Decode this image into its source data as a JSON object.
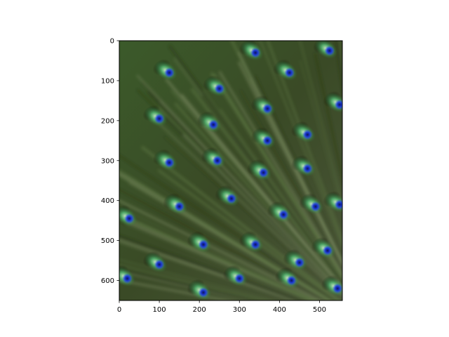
{
  "chart_data": {
    "type": "heatmap",
    "description_of_image": "",
    "x_ticks": [
      "0",
      "100",
      "200",
      "300",
      "400",
      "500"
    ],
    "y_ticks": [
      "0",
      "100",
      "200",
      "300",
      "400",
      "500",
      "600"
    ],
    "xlim": [
      0,
      557
    ],
    "ylim": [
      650,
      0
    ],
    "grid": false,
    "colors": {
      "background": "#2e3b1f",
      "feather_green": "#3aa55a",
      "feather_highlight": "#b7e8b0",
      "eye_blue": "#1e3ad6",
      "eye_core": "#0a1460",
      "shadow": "#141a0c",
      "axis": "#000000"
    },
    "eyespots": [
      {
        "x": 340,
        "y": 30
      },
      {
        "x": 525,
        "y": 25
      },
      {
        "x": 125,
        "y": 80
      },
      {
        "x": 425,
        "y": 80
      },
      {
        "x": 250,
        "y": 120
      },
      {
        "x": 550,
        "y": 160
      },
      {
        "x": 370,
        "y": 170
      },
      {
        "x": 100,
        "y": 195
      },
      {
        "x": 235,
        "y": 210
      },
      {
        "x": 470,
        "y": 235
      },
      {
        "x": 370,
        "y": 250
      },
      {
        "x": 125,
        "y": 305
      },
      {
        "x": 245,
        "y": 300
      },
      {
        "x": 360,
        "y": 330
      },
      {
        "x": 470,
        "y": 320
      },
      {
        "x": 150,
        "y": 415
      },
      {
        "x": 280,
        "y": 395
      },
      {
        "x": 410,
        "y": 435
      },
      {
        "x": 490,
        "y": 415
      },
      {
        "x": 550,
        "y": 410
      },
      {
        "x": 25,
        "y": 445
      },
      {
        "x": 210,
        "y": 510
      },
      {
        "x": 340,
        "y": 510
      },
      {
        "x": 520,
        "y": 525
      },
      {
        "x": 100,
        "y": 560
      },
      {
        "x": 450,
        "y": 555
      },
      {
        "x": 20,
        "y": 595
      },
      {
        "x": 300,
        "y": 595
      },
      {
        "x": 430,
        "y": 600
      },
      {
        "x": 210,
        "y": 630
      },
      {
        "x": 545,
        "y": 620
      }
    ]
  }
}
